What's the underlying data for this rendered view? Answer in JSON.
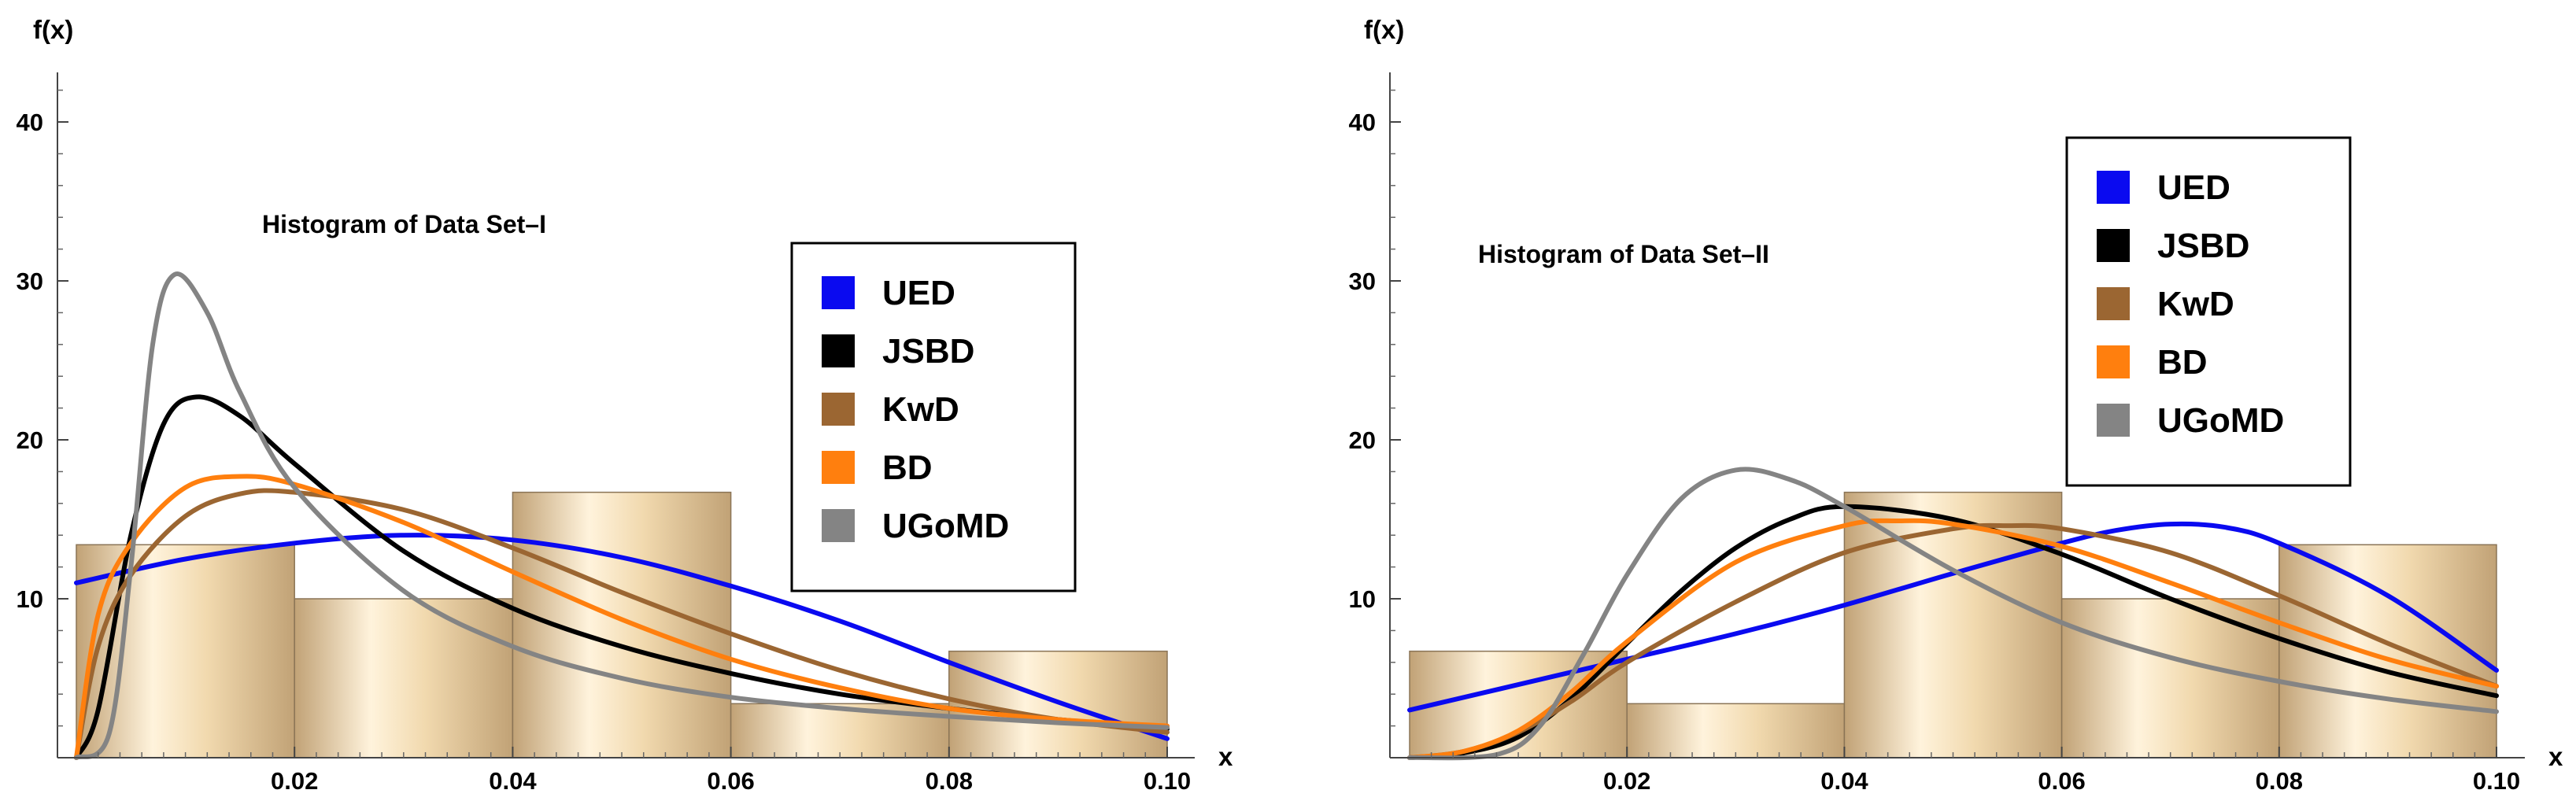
{
  "colors": {
    "UED": "#0a0af0",
    "JSBD": "#000000",
    "KwD": "#9b6632",
    "BD": "#ff7f0e",
    "UGoMD": "#848484",
    "bar_light": "#fff3dc",
    "bar_dark": "#c1a276",
    "bar_edge": "#8a7456"
  },
  "chart_data": [
    {
      "type": "histogram",
      "title": "Histogram of Data Set–I",
      "xlabel": "x",
      "ylabel": "f(x)",
      "xlim": [
        0,
        0.1
      ],
      "ylim": [
        0,
        43
      ],
      "x_ticks": [
        0.02,
        0.04,
        0.06,
        0.08,
        0.1
      ],
      "x_tick_labels": [
        "0.02",
        "0.04",
        "0.06",
        "0.08",
        "0.10"
      ],
      "y_ticks": [
        10,
        20,
        30,
        40
      ],
      "y_tick_labels": [
        "10",
        "20",
        "30",
        "40"
      ],
      "legend_position": "upper-right",
      "bins": [
        {
          "x0": 0.0,
          "x1": 0.02,
          "height": 13.4
        },
        {
          "x0": 0.02,
          "x1": 0.04,
          "height": 10.0
        },
        {
          "x0": 0.04,
          "x1": 0.06,
          "height": 16.7
        },
        {
          "x0": 0.06,
          "x1": 0.08,
          "height": 3.4
        },
        {
          "x0": 0.08,
          "x1": 0.1,
          "height": 6.7
        }
      ],
      "series": [
        {
          "name": "UED",
          "x": [
            0,
            0.01,
            0.02,
            0.03,
            0.04,
            0.05,
            0.06,
            0.07,
            0.08,
            0.09,
            0.1
          ],
          "y": [
            11.0,
            12.5,
            13.5,
            14.0,
            13.7,
            12.6,
            10.8,
            8.6,
            6.0,
            3.5,
            1.2
          ]
        },
        {
          "name": "JSBD",
          "x": [
            0,
            0.002,
            0.005,
            0.008,
            0.011,
            0.015,
            0.02,
            0.03,
            0.04,
            0.05,
            0.06,
            0.07,
            0.08,
            0.09,
            0.1
          ],
          "y": [
            0,
            3.0,
            14.0,
            21.0,
            22.7,
            21.5,
            18.5,
            13.0,
            9.4,
            7.0,
            5.3,
            4.0,
            3.1,
            2.4,
            1.8
          ]
        },
        {
          "name": "KwD",
          "x": [
            0,
            0.002,
            0.005,
            0.01,
            0.015,
            0.02,
            0.03,
            0.04,
            0.05,
            0.06,
            0.07,
            0.08,
            0.09,
            0.1
          ],
          "y": [
            0,
            7.0,
            11.5,
            15.2,
            16.6,
            16.7,
            15.6,
            13.2,
            10.4,
            7.8,
            5.5,
            3.7,
            2.4,
            1.6
          ]
        },
        {
          "name": "BD",
          "x": [
            0,
            0.002,
            0.005,
            0.01,
            0.015,
            0.02,
            0.03,
            0.04,
            0.05,
            0.06,
            0.07,
            0.08,
            0.09,
            0.1
          ],
          "y": [
            0,
            9.0,
            13.5,
            17.0,
            17.7,
            17.2,
            14.8,
            11.7,
            8.7,
            6.2,
            4.4,
            3.1,
            2.4,
            2.0
          ]
        },
        {
          "name": "UGoMD",
          "x": [
            0,
            0.003,
            0.005,
            0.007,
            0.009,
            0.012,
            0.015,
            0.02,
            0.03,
            0.04,
            0.05,
            0.06,
            0.07,
            0.08,
            0.09,
            0.1
          ],
          "y": [
            0,
            1.5,
            12.0,
            26.0,
            30.4,
            28.0,
            23.0,
            17.0,
            10.5,
            7.0,
            5.0,
            3.8,
            3.1,
            2.6,
            2.2,
            1.9
          ]
        }
      ]
    },
    {
      "type": "histogram",
      "title": "Histogram of Data Set–II",
      "xlabel": "x",
      "ylabel": "f(x)",
      "xlim": [
        0,
        0.1
      ],
      "ylim": [
        0,
        43
      ],
      "x_ticks": [
        0.02,
        0.04,
        0.06,
        0.08,
        0.1
      ],
      "x_tick_labels": [
        "0.02",
        "0.04",
        "0.06",
        "0.08",
        "0.10"
      ],
      "y_ticks": [
        10,
        20,
        30,
        40
      ],
      "y_tick_labels": [
        "10",
        "20",
        "30",
        "40"
      ],
      "legend_position": "upper-right",
      "bins": [
        {
          "x0": 0.0,
          "x1": 0.02,
          "height": 6.7
        },
        {
          "x0": 0.02,
          "x1": 0.04,
          "height": 3.4
        },
        {
          "x0": 0.04,
          "x1": 0.06,
          "height": 16.7
        },
        {
          "x0": 0.06,
          "x1": 0.08,
          "height": 10.0
        },
        {
          "x0": 0.08,
          "x1": 0.1,
          "height": 13.4
        }
      ],
      "series": [
        {
          "name": "UED",
          "x": [
            0,
            0.01,
            0.02,
            0.03,
            0.04,
            0.05,
            0.06,
            0.065,
            0.07,
            0.075,
            0.08,
            0.09,
            0.1
          ],
          "y": [
            3.0,
            4.6,
            6.2,
            7.8,
            9.6,
            11.6,
            13.5,
            14.3,
            14.7,
            14.5,
            13.5,
            10.2,
            5.5
          ]
        },
        {
          "name": "JSBD",
          "x": [
            0,
            0.005,
            0.01,
            0.015,
            0.02,
            0.025,
            0.03,
            0.035,
            0.04,
            0.05,
            0.06,
            0.07,
            0.08,
            0.09,
            0.1
          ],
          "y": [
            0,
            0.3,
            1.3,
            3.8,
            7.2,
            10.5,
            13.2,
            15.0,
            15.8,
            15.0,
            12.8,
            10.0,
            7.5,
            5.4,
            3.9
          ]
        },
        {
          "name": "KwD",
          "x": [
            0,
            0.005,
            0.01,
            0.015,
            0.02,
            0.03,
            0.04,
            0.05,
            0.055,
            0.06,
            0.07,
            0.08,
            0.09,
            0.1
          ],
          "y": [
            0,
            0.4,
            1.6,
            3.6,
            6.0,
            9.8,
            12.9,
            14.4,
            14.6,
            14.4,
            12.9,
            10.2,
            7.2,
            4.5
          ]
        },
        {
          "name": "BD",
          "x": [
            0,
            0.005,
            0.01,
            0.015,
            0.02,
            0.03,
            0.04,
            0.045,
            0.05,
            0.06,
            0.07,
            0.08,
            0.09,
            0.1
          ],
          "y": [
            0,
            0.4,
            1.7,
            4.2,
            7.3,
            12.3,
            14.6,
            14.9,
            14.7,
            13.3,
            11.0,
            8.5,
            6.2,
            4.5
          ]
        },
        {
          "name": "UGoMD",
          "x": [
            0,
            0.008,
            0.012,
            0.016,
            0.02,
            0.025,
            0.03,
            0.035,
            0.04,
            0.05,
            0.06,
            0.07,
            0.08,
            0.09,
            0.1
          ],
          "y": [
            0,
            0.2,
            2.0,
            6.5,
            11.5,
            16.3,
            18.1,
            17.5,
            15.8,
            11.8,
            8.5,
            6.3,
            4.8,
            3.7,
            2.9
          ]
        }
      ]
    }
  ]
}
